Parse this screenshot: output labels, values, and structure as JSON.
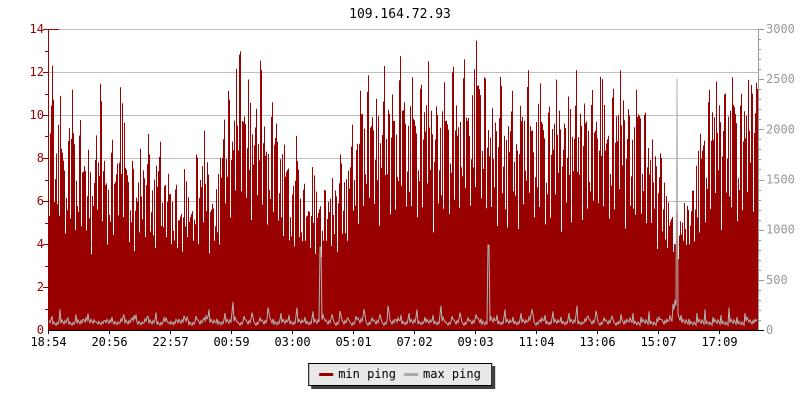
{
  "title": "109.164.72.93",
  "legend": {
    "items": [
      {
        "label": "min ping",
        "color": "#990000"
      },
      {
        "label": "max ping",
        "color": "#aaaaaa"
      }
    ]
  },
  "chart_data": {
    "type": "bar",
    "title": "109.164.72.93",
    "x_tick_labels": [
      "18:54",
      "20:56",
      "22:57",
      "00:59",
      "03:00",
      "05:01",
      "07:02",
      "09:03",
      "11:04",
      "13:06",
      "15:07",
      "17:09"
    ],
    "left_axis": {
      "min": 0,
      "max": 14,
      "tick_step": 2,
      "minor_step": 1,
      "color": "#990000"
    },
    "right_axis": {
      "min": 0,
      "max": 3000,
      "tick_step": 500,
      "minor_step": 100,
      "color": "#999999"
    },
    "grid": {
      "on": true,
      "color": "#bdbdbd",
      "step_left_units": 2
    },
    "legend_position": "bottom-center",
    "series": [
      {
        "name": "min ping",
        "type": "bar",
        "color": "#990000",
        "axis": "left",
        "values": [
          9.5,
          12.3,
          8.2,
          10.9,
          7.4,
          8.8,
          11.2,
          6.9,
          9.8,
          7.6,
          8.4,
          6.2,
          9.1,
          11.5,
          7.8,
          6.5,
          8.9,
          7.2,
          11.4,
          9.6,
          6.8,
          7.9,
          6.1,
          8.5,
          7.0,
          9.2,
          6.4,
          7.7,
          8.8,
          6.6,
          7.3,
          5.9,
          6.8,
          5.2,
          7.6,
          6.1,
          5.5,
          8.3,
          6.9,
          9.4,
          7.1,
          5.8,
          6.6,
          8.1,
          9.9,
          11.2,
          8.6,
          12.4,
          13.0,
          9.7,
          11.8,
          8.9,
          10.4,
          12.7,
          9.2,
          8.1,
          10.8,
          9.5,
          7.8,
          8.7,
          7.4,
          6.2,
          9.3,
          5.8,
          6.9,
          5.4,
          7.8,
          6.3,
          5.7,
          6.6,
          5.9,
          7.2,
          6.1,
          8.4,
          6.7,
          7.5,
          9.8,
          8.2,
          11.5,
          9.1,
          12.2,
          9.6,
          10.9,
          8.4,
          12.8,
          9.9,
          11.1,
          8.8,
          13.3,
          10.2,
          9.4,
          12.1,
          8.7,
          11.6,
          9.9,
          12.9,
          8.5,
          10.7,
          9.2,
          11.9,
          8.9,
          12.5,
          10.1,
          9.6,
          13.1,
          9.3,
          11.2,
          13.85,
          10.4,
          12.0,
          8.8,
          10.6,
          9.0,
          12.3,
          8.4,
          9.7,
          11.4,
          8.1,
          10.9,
          9.5,
          12.6,
          8.6,
          9.9,
          11.8,
          8.3,
          10.5,
          9.1,
          12.2,
          8.7,
          9.8,
          11.1,
          8.5,
          12.9,
          9.4,
          10.8,
          8.9,
          11.7,
          9.2,
          12.4,
          10.0,
          8.8,
          11.3,
          9.6,
          12.7,
          9.0,
          10.6,
          8.4,
          11.9,
          9.3,
          10.2,
          8.0,
          9.1,
          7.2,
          8.5,
          6.4,
          5.8,
          5.1,
          5.6,
          4.9,
          6.2,
          5.4,
          6.8,
          7.9,
          9.5,
          8.6,
          11.2,
          9.8,
          12.1,
          8.9,
          11.6,
          9.4,
          12.5,
          8.7,
          11.0,
          9.9,
          12.2,
          10.6,
          11.8
        ]
      },
      {
        "name": "max ping",
        "type": "line",
        "color": "#b3b3b3",
        "axis": "left",
        "values": [
          0.5,
          0.8,
          0.4,
          1.2,
          0.5,
          0.7,
          0.4,
          0.9,
          0.5,
          0.6,
          1.4,
          0.5,
          0.7,
          0.4,
          0.8,
          0.5,
          1.1,
          0.4,
          0.6,
          0.9,
          0.5,
          0.7,
          1.3,
          0.4,
          0.6,
          0.8,
          0.5,
          1.0,
          0.4,
          0.7,
          0.6,
          0.4,
          0.9,
          0.5,
          1.2,
          0.6,
          0.4,
          0.8,
          0.5,
          0.7,
          1.1,
          0.5,
          0.6,
          0.4,
          0.9,
          0.5,
          1.5,
          0.6,
          0.4,
          0.8,
          0.5,
          1.0,
          0.4,
          0.7,
          0.5,
          1.3,
          0.6,
          0.4,
          0.9,
          0.5,
          0.8,
          0.4,
          1.2,
          0.5,
          0.7,
          0.4,
          1.0,
          0.5,
          3.85,
          0.7,
          0.5,
          0.9,
          0.4,
          1.1,
          0.5,
          0.7,
          0.4,
          0.8,
          0.6,
          1.2,
          0.4,
          0.7,
          0.5,
          0.9,
          0.4,
          1.4,
          0.5,
          0.6,
          0.8,
          0.4,
          0.9,
          0.5,
          1.1,
          0.4,
          0.7,
          0.5,
          0.8,
          0.4,
          1.3,
          0.6,
          0.4,
          0.8,
          0.5,
          1.0,
          0.4,
          0.7,
          0.5,
          0.9,
          0.6,
          0.4,
          3.95,
          0.6,
          0.8,
          0.4,
          1.1,
          0.5,
          0.7,
          0.4,
          0.9,
          0.5,
          0.7,
          1.2,
          0.4,
          0.6,
          0.8,
          0.4,
          1.0,
          0.5,
          0.7,
          0.4,
          0.9,
          0.5,
          1.3,
          0.4,
          0.6,
          0.8,
          0.5,
          1.1,
          0.4,
          0.7,
          0.5,
          0.8,
          0.4,
          1.2,
          0.5,
          0.6,
          0.9,
          0.4,
          0.7,
          0.5,
          1.0,
          0.4,
          0.6,
          0.8,
          0.5,
          0.7,
          1.4,
          11.7,
          0.8,
          0.5,
          0.6,
          0.4,
          0.9,
          0.5,
          1.1,
          0.4,
          0.7,
          0.5,
          0.8,
          0.4,
          1.2,
          0.5,
          0.7,
          0.4,
          0.9,
          0.6,
          0.5,
          0.8
        ]
      }
    ]
  }
}
